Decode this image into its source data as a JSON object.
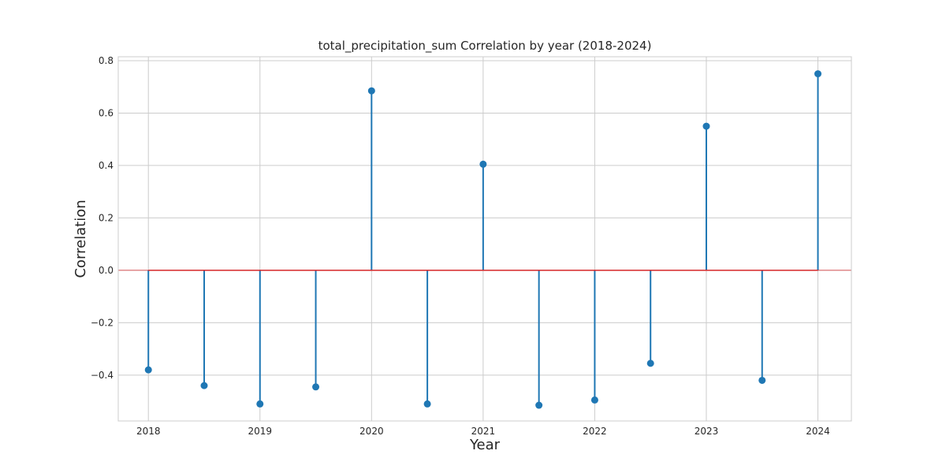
{
  "chart_data": {
    "type": "stem",
    "title": "total_precipitation_sum Correlation by year (2018-2024)",
    "xlabel": "Year",
    "ylabel": "Correlation",
    "x": [
      2018,
      2018.5,
      2019,
      2019.5,
      2020,
      2020.5,
      2021,
      2021.5,
      2022,
      2022.5,
      2023,
      2023.5,
      2024
    ],
    "values": [
      -0.38,
      -0.44,
      -0.51,
      -0.445,
      0.685,
      -0.51,
      0.405,
      -0.515,
      -0.495,
      -0.355,
      0.55,
      -0.42,
      0.75
    ],
    "xticks": [
      2018,
      2019,
      2020,
      2021,
      2022,
      2023,
      2024
    ],
    "yticks": [
      -0.4,
      -0.2,
      0.0,
      0.2,
      0.4,
      0.6,
      0.8
    ],
    "ytick_labels": [
      "−0.4",
      "−0.2",
      "0.0",
      "0.2",
      "0.4",
      "0.6",
      "0.8"
    ],
    "xlim": [
      2017.73,
      2024.3
    ],
    "ylim": [
      -0.575,
      0.815
    ],
    "grid": true,
    "baseline": 0,
    "colors": {
      "stem": "#1f77b4",
      "marker": "#1f77b4",
      "baseline": "#d62728",
      "grid": "#cccccc",
      "frame": "#cccccc"
    }
  }
}
